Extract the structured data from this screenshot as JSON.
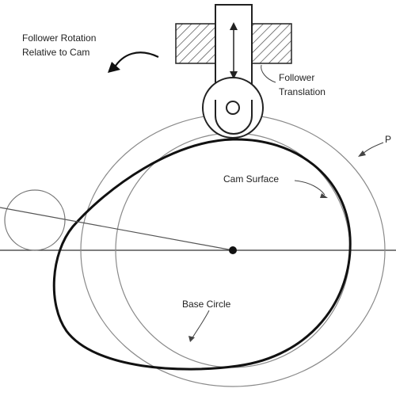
{
  "labels": {
    "follower_rotation_line1": "Follower Rotation",
    "follower_rotation_line2": "Relative to Cam",
    "follower_translation_line1": "Follower",
    "follower_translation_line2": "Translation",
    "cam_surface": "Cam Surface",
    "base_circle": "Base Circle",
    "pitch_curve_partial": "P"
  },
  "colors": {
    "stroke": "#111111",
    "light_stroke": "#777777",
    "hatch": "#555555"
  }
}
